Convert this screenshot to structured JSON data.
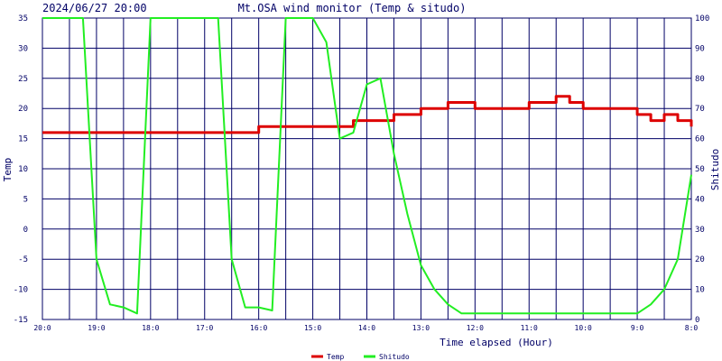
{
  "header": {
    "timestamp": "2024/06/27 20:00",
    "title": "Mt.OSA wind monitor (Temp & situdo)"
  },
  "chart_data": {
    "type": "line",
    "xlabel": "Time elapsed (Hour)",
    "ylabel_left": "Temp",
    "ylabel_right": "Shitudo",
    "ylim_left": [
      -15,
      35
    ],
    "ylim_right": [
      0,
      100
    ],
    "left_ticks": [
      "35",
      "30",
      "25",
      "20",
      "15",
      "10",
      "5",
      "0",
      "-5",
      "-10",
      "-15"
    ],
    "right_ticks": [
      "100",
      "90",
      "80",
      "70",
      "60",
      "50",
      "40",
      "30",
      "20",
      "10",
      "0"
    ],
    "x_tick_labels": [
      "20:0",
      "19:0",
      "18:0",
      "17:0",
      "16:0",
      "15:0",
      "14:0",
      "13:0",
      "12:0",
      "11:0",
      "10:0",
      "9:0",
      "8:0"
    ],
    "grid": true,
    "legend_position": "bottom",
    "x_hours_elapsed": [
      0,
      0.25,
      0.5,
      0.75,
      1.0,
      1.25,
      1.5,
      1.75,
      2.0,
      2.25,
      2.5,
      2.75,
      3.0,
      3.25,
      3.5,
      3.75,
      4.0,
      4.25,
      4.5,
      4.75,
      5.0,
      5.25,
      5.5,
      5.75,
      6.0,
      6.25,
      6.5,
      6.75,
      7.0,
      7.25,
      7.5,
      7.75,
      8.0,
      8.25,
      8.5,
      8.75,
      9.0,
      9.25,
      9.5,
      9.75,
      10.0,
      10.25,
      10.5,
      10.75,
      11.0,
      11.25,
      11.5,
      11.75,
      12.0
    ],
    "series": [
      {
        "name": "Temp",
        "axis": "left",
        "color": "#dd0000",
        "values": [
          16,
          16,
          16,
          16,
          16,
          16,
          16,
          16,
          16,
          16,
          16,
          16,
          16,
          16,
          16,
          16,
          17,
          17,
          17,
          17,
          17,
          17,
          17,
          18,
          18,
          18,
          19,
          19,
          20,
          20,
          21,
          21,
          20,
          20,
          20,
          20,
          21,
          21,
          22,
          21,
          20,
          20,
          20,
          20,
          19,
          18,
          19,
          18,
          17
        ]
      },
      {
        "name": "Shitudo",
        "axis": "right",
        "color": "#22ee22",
        "values": [
          100,
          100,
          100,
          100,
          20,
          5,
          4,
          2,
          100,
          100,
          100,
          100,
          100,
          100,
          20,
          4,
          4,
          3,
          100,
          100,
          100,
          92,
          60,
          62,
          78,
          80,
          55,
          35,
          18,
          10,
          5,
          2,
          2,
          2,
          2,
          2,
          2,
          2,
          2,
          2,
          2,
          2,
          2,
          2,
          2,
          5,
          10,
          20,
          48
        ]
      }
    ]
  },
  "legend": {
    "temp_label": "Temp",
    "shitudo_label": "Shitudo"
  },
  "colors": {
    "axis": "#000066",
    "grid": "#000066",
    "background": "#ffffff"
  }
}
